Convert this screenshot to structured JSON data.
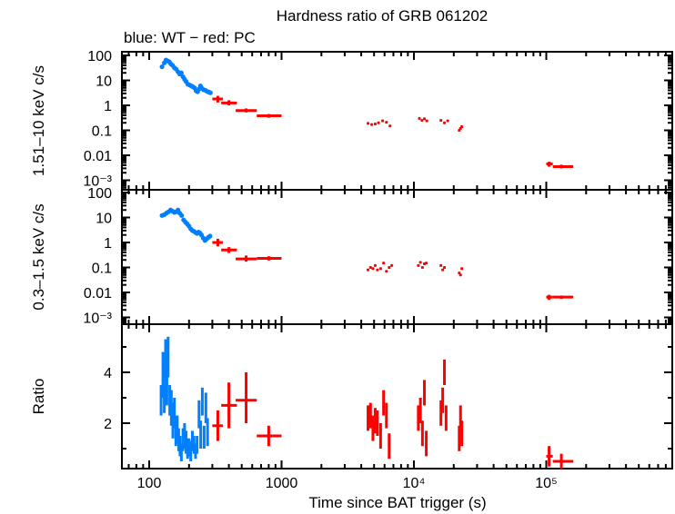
{
  "chart_data": [
    {
      "type": "scatter",
      "panel": "hard-band",
      "title": "Hardness ratio of GRB 061202",
      "subtitle": "blue: WT − red: PC",
      "ylabel": "1.51–10 keV c/s",
      "xscale": "log",
      "yscale": "log",
      "xlim": [
        63,
        800000
      ],
      "ylim": [
        0.0006,
        130
      ],
      "yticks": [
        {
          "v": 100,
          "label": "100"
        },
        {
          "v": 10,
          "label": "10"
        },
        {
          "v": 1,
          "label": "1"
        },
        {
          "v": 0.1,
          "label": "0.1"
        },
        {
          "v": 0.01,
          "label": "0.01"
        },
        {
          "v": 0.001,
          "label": "10⁻³"
        }
      ],
      "series": [
        {
          "name": "WT",
          "color": "#0080ff",
          "points": [
            [
              125,
              35
            ],
            [
              130,
              50
            ],
            [
              134,
              65
            ],
            [
              138,
              60
            ],
            [
              142,
              55
            ],
            [
              146,
              45
            ],
            [
              150,
              40
            ],
            [
              155,
              32
            ],
            [
              160,
              28
            ],
            [
              165,
              22
            ],
            [
              170,
              18
            ],
            [
              175,
              20
            ],
            [
              180,
              14
            ],
            [
              185,
              11
            ],
            [
              190,
              9
            ],
            [
              196,
              7
            ],
            [
              202,
              6.5
            ],
            [
              208,
              6
            ],
            [
              214,
              5.5
            ],
            [
              220,
              5
            ],
            [
              226,
              3.8
            ],
            [
              232,
              3.5
            ],
            [
              238,
              4.5
            ],
            [
              244,
              6
            ],
            [
              250,
              4.8
            ],
            [
              258,
              4.2
            ],
            [
              266,
              4
            ],
            [
              274,
              3.6
            ],
            [
              282,
              3.4
            ],
            [
              290,
              3.2
            ]
          ]
        },
        {
          "name": "PC",
          "color": "#ff0000",
          "points": [
            [
              330,
              1.8,
              300,
              360,
              1.3,
              2.4
            ],
            [
              400,
              1.25,
              350,
              460,
              1.0,
              1.6
            ],
            [
              540,
              0.62,
              450,
              650,
              0.52,
              0.75
            ],
            [
              800,
              0.38,
              650,
              1000,
              0.32,
              0.45
            ],
            [
              4500,
              0.19
            ],
            [
              4800,
              0.17
            ],
            [
              5100,
              0.18
            ],
            [
              5400,
              0.2
            ],
            [
              5800,
              0.24
            ],
            [
              6200,
              0.21
            ],
            [
              6600,
              0.15
            ],
            [
              11000,
              0.3
            ],
            [
              11500,
              0.25
            ],
            [
              12000,
              0.29
            ],
            [
              12500,
              0.24
            ],
            [
              16000,
              0.25
            ],
            [
              17000,
              0.2
            ],
            [
              18000,
              0.24
            ],
            [
              22000,
              0.1
            ],
            [
              22500,
              0.12
            ],
            [
              23000,
              0.14
            ],
            [
              105000,
              0.0045,
              100000,
              112000,
              0.0035,
              0.0055
            ],
            [
              130000,
              0.0035,
              112000,
              160000,
              0.003,
              0.0042
            ]
          ]
        }
      ]
    },
    {
      "type": "scatter",
      "panel": "soft-band",
      "ylabel": "0.3–1.5 keV c/s",
      "xscale": "log",
      "yscale": "log",
      "xlim": [
        63,
        800000
      ],
      "ylim": [
        0.0006,
        130
      ],
      "yticks": [
        {
          "v": 100,
          "label": "100"
        },
        {
          "v": 10,
          "label": "10"
        },
        {
          "v": 1,
          "label": "1"
        },
        {
          "v": 0.1,
          "label": "0.1"
        },
        {
          "v": 0.01,
          "label": "0.01"
        },
        {
          "v": 0.001,
          "label": "10⁻³"
        }
      ],
      "series": [
        {
          "name": "WT",
          "color": "#0080ff",
          "points": [
            [
              125,
              12
            ],
            [
              130,
              13
            ],
            [
              135,
              15
            ],
            [
              140,
              17
            ],
            [
              145,
              20
            ],
            [
              150,
              18
            ],
            [
              155,
              16
            ],
            [
              160,
              17
            ],
            [
              165,
              20
            ],
            [
              170,
              15
            ],
            [
              176,
              12
            ],
            [
              182,
              8
            ],
            [
              188,
              6.5
            ],
            [
              194,
              5.5
            ],
            [
              200,
              4.5
            ],
            [
              206,
              3.5
            ],
            [
              212,
              3
            ],
            [
              218,
              2.8
            ],
            [
              224,
              2.5
            ],
            [
              230,
              2.3
            ],
            [
              236,
              2.6
            ],
            [
              242,
              2.4
            ],
            [
              248,
              2
            ],
            [
              256,
              1.5
            ],
            [
              264,
              1.2
            ],
            [
              272,
              1.4
            ],
            [
              280,
              1.6
            ],
            [
              288,
              1.8
            ]
          ]
        },
        {
          "name": "PC",
          "color": "#ff0000",
          "points": [
            [
              330,
              1.0,
              300,
              360,
              0.7,
              1.4
            ],
            [
              400,
              0.5,
              350,
              460,
              0.38,
              0.65
            ],
            [
              540,
              0.22,
              450,
              650,
              0.17,
              0.3
            ],
            [
              800,
              0.23,
              650,
              1000,
              0.19,
              0.28
            ],
            [
              4500,
              0.08
            ],
            [
              4700,
              0.1
            ],
            [
              4900,
              0.09
            ],
            [
              5100,
              0.12
            ],
            [
              5300,
              0.08
            ],
            [
              5600,
              0.09
            ],
            [
              5900,
              0.15
            ],
            [
              6200,
              0.07
            ],
            [
              6500,
              0.1
            ],
            [
              6800,
              0.12
            ],
            [
              10800,
              0.12
            ],
            [
              11200,
              0.16
            ],
            [
              11600,
              0.1
            ],
            [
              12000,
              0.14
            ],
            [
              12400,
              0.15
            ],
            [
              16000,
              0.12
            ],
            [
              16500,
              0.08
            ],
            [
              17000,
              0.1
            ],
            [
              22000,
              0.06
            ],
            [
              22500,
              0.05
            ],
            [
              23000,
              0.09
            ],
            [
              105000,
              0.0065,
              100000,
              112000,
              0.005,
              0.008
            ],
            [
              130000,
              0.0065,
              112000,
              160000,
              0.0055,
              0.0075
            ]
          ]
        }
      ]
    },
    {
      "type": "scatter",
      "panel": "ratio",
      "ylabel": "Ratio",
      "xlabel": "Time since BAT trigger (s)",
      "xscale": "log",
      "yscale": "linear",
      "xlim": [
        63,
        800000
      ],
      "ylim": [
        0.2,
        5.9
      ],
      "yticks": [
        {
          "v": 4,
          "label": "4"
        },
        {
          "v": 2,
          "label": "2"
        }
      ],
      "xticks": [
        {
          "v": 100,
          "label": "100"
        },
        {
          "v": 1000,
          "label": "1000"
        },
        {
          "v": 10000,
          "label": "10⁴"
        },
        {
          "v": 100000,
          "label": "10⁵"
        }
      ],
      "series": [
        {
          "name": "WT",
          "color": "#0080ff",
          "points": [
            [
              123,
              2.9,
              2.3,
              3.5
            ],
            [
              127,
              3.9,
              3.0,
              4.8
            ],
            [
              130,
              3.0,
              2.4,
              3.6
            ],
            [
              133,
              4.5,
              3.6,
              5.3
            ],
            [
              136,
              3.6,
              2.7,
              4.3
            ],
            [
              139,
              4.6,
              3.8,
              5.4
            ],
            [
              143,
              2.9,
              2.3,
              3.5
            ],
            [
              147,
              2.6,
              1.9,
              3.3
            ],
            [
              151,
              2.0,
              1.4,
              2.8
            ],
            [
              155,
              2.5,
              1.8,
              3.0
            ],
            [
              159,
              1.6,
              1.1,
              2.3
            ],
            [
              163,
              1.8,
              1.2,
              2.3
            ],
            [
              167,
              1.3,
              0.9,
              1.8
            ],
            [
              171,
              1.1,
              0.7,
              1.5
            ],
            [
              175,
              0.8,
              0.5,
              1.2
            ],
            [
              180,
              1.3,
              0.9,
              1.8
            ],
            [
              185,
              1.5,
              1.0,
              2.0
            ],
            [
              190,
              1.2,
              0.8,
              1.7
            ],
            [
              195,
              0.9,
              0.6,
              1.4
            ],
            [
              200,
              1.0,
              0.7,
              1.4
            ],
            [
              206,
              0.8,
              0.5,
              1.3
            ],
            [
              212,
              1.3,
              0.9,
              1.7
            ],
            [
              218,
              1.1,
              0.8,
              1.5
            ],
            [
              224,
              0.9,
              0.6,
              1.2
            ],
            [
              230,
              1.1,
              0.8,
              1.5
            ],
            [
              238,
              2.3,
              1.8,
              2.9
            ],
            [
              245,
              1.5,
              1.0,
              2.1
            ],
            [
              252,
              2.8,
              2.3,
              3.4
            ],
            [
              260,
              1.4,
              1.0,
              1.9
            ],
            [
              268,
              2.7,
              2.0,
              3.2
            ],
            [
              276,
              1.6,
              1.1,
              2.2
            ]
          ]
        },
        {
          "name": "PC",
          "color": "#ff0000",
          "points": [
            [
              330,
              1.9,
              300,
              360,
              1.3,
              2.5
            ],
            [
              400,
              2.7,
              350,
              460,
              1.8,
              3.6
            ],
            [
              540,
              2.9,
              450,
              650,
              2.0,
              4.0
            ],
            [
              800,
              1.5,
              650,
              1000,
              1.1,
              1.9
            ],
            [
              4500,
              2.2
            ],
            [
              4700,
              2.3
            ],
            [
              4900,
              1.8
            ],
            [
              5100,
              2.1
            ],
            [
              5300,
              2.0
            ],
            [
              5600,
              1.5
            ],
            [
              5900,
              2.8
            ],
            [
              6200,
              2.3
            ],
            [
              6500,
              1.1
            ],
            [
              10800,
              2.2
            ],
            [
              11200,
              2.5
            ],
            [
              11600,
              1.6
            ],
            [
              12000,
              3.2
            ],
            [
              12400,
              1.2
            ],
            [
              16000,
              2.4
            ],
            [
              16500,
              2.9
            ],
            [
              17000,
              4.0
            ],
            [
              17500,
              2.2
            ],
            [
              22000,
              1.4
            ],
            [
              22500,
              2.2
            ],
            [
              23000,
              1.6
            ],
            [
              105000,
              0.7,
              100000,
              112000,
              0.3,
              1.1
            ],
            [
              130000,
              0.5,
              112000,
              160000,
              0.2,
              0.8
            ]
          ]
        }
      ]
    }
  ]
}
